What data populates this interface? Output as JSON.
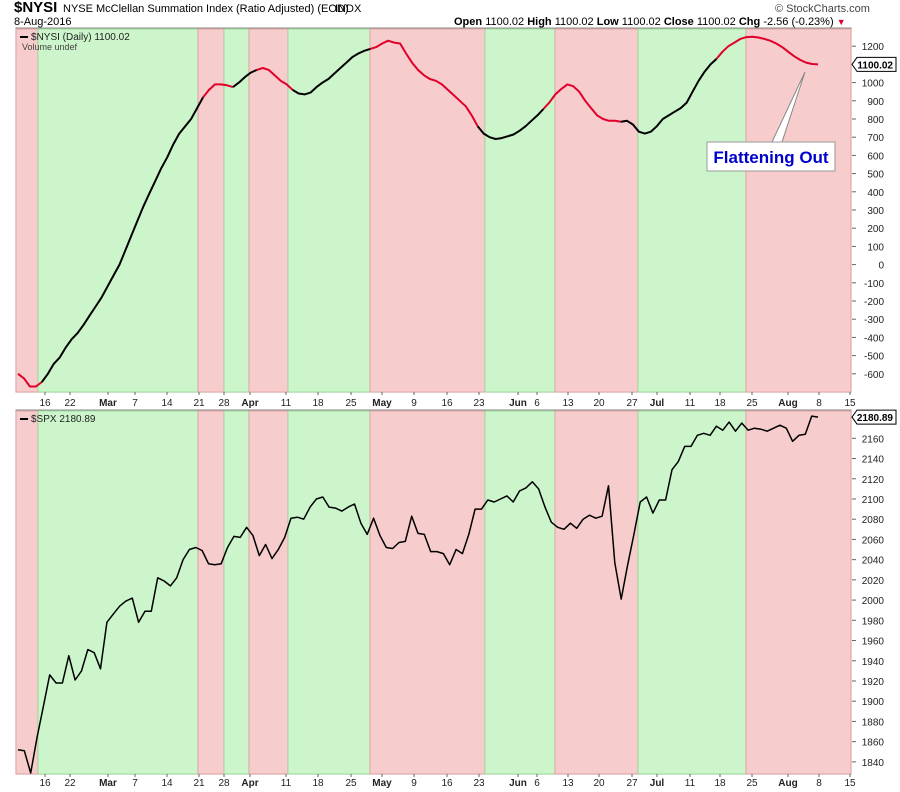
{
  "header": {
    "symbol": "$NYSI",
    "description": "NYSE McClellan Summation Index (Ratio Adjusted) (EOD)",
    "exchange": "INDX",
    "date": "8-Aug-2016",
    "open_label": "Open",
    "open": "1100.02",
    "high_label": "High",
    "high": "1100.02",
    "low_label": "Low",
    "low": "1100.02",
    "close_label": "Close",
    "close": "1100.02",
    "chg_label": "Chg",
    "chg": "-2.56 (-0.23%)",
    "copyright": "© StockCharts.com"
  },
  "colors": {
    "green_band": "#cdf5cc",
    "red_band": "#f6cccc",
    "green_edge": "#8fd88f",
    "red_edge": "#e09a9a",
    "line_up": "#000000",
    "line_down": "#e0002a",
    "callout_text": "#0000cc",
    "grid": "#b0b0b0"
  },
  "annotation": {
    "text": "Flattening Out"
  },
  "chart_data": [
    {
      "type": "line",
      "title": "$NYSI (Daily) 1100.02",
      "subtitle": "Volume undef",
      "last_value": "1100.02",
      "ylim": [
        -700,
        1300
      ],
      "yticks": [
        1200,
        1100,
        1000,
        900,
        800,
        700,
        600,
        500,
        400,
        300,
        200,
        100,
        0,
        -100,
        -200,
        -300,
        -400,
        -500,
        -600
      ],
      "x_tick_labels": [
        "16",
        "22",
        "Mar",
        "7",
        "14",
        "21",
        "28",
        "Apr",
        "11",
        "18",
        "25",
        "May",
        "9",
        "16",
        "23",
        "Jun",
        "6",
        "13",
        "20",
        "27",
        "Jul",
        "11",
        "18",
        "25",
        "Aug",
        "8",
        "15"
      ],
      "regimes": [
        {
          "type": "down",
          "from": 0,
          "to": 2
        },
        {
          "type": "up",
          "from": 2,
          "to": 15
        },
        {
          "type": "down",
          "from": 15,
          "to": 17
        },
        {
          "type": "up",
          "from": 17,
          "to": 19
        },
        {
          "type": "down",
          "from": 19,
          "to": 22
        },
        {
          "type": "up",
          "from": 22,
          "to": 28
        },
        {
          "type": "down",
          "from": 28,
          "to": 37
        },
        {
          "type": "up",
          "from": 37,
          "to": 42
        },
        {
          "type": "down",
          "from": 42,
          "to": 48
        },
        {
          "type": "up",
          "from": 48,
          "to": 56
        },
        {
          "type": "down",
          "from": 56,
          "to": 65
        }
      ],
      "series": [
        {
          "values": [
            -600,
            -625,
            -670,
            -670,
            -645,
            -600,
            -545,
            -510,
            -455,
            -410,
            -375,
            -330,
            -280,
            -230,
            -180,
            -120,
            -60,
            0,
            80,
            160,
            240,
            320,
            390,
            460,
            530,
            590,
            660,
            720,
            760,
            800,
            860,
            920,
            960,
            990,
            990,
            985,
            975,
            1000,
            1030,
            1055,
            1070,
            1080,
            1070,
            1040,
            1010,
            990,
            960,
            940,
            935,
            945,
            975,
            1000,
            1020,
            1050,
            1080,
            1110,
            1140,
            1160,
            1175,
            1185,
            1195,
            1215,
            1230,
            1220,
            1215,
            1160,
            1110,
            1070,
            1040,
            1020,
            1010,
            990,
            960,
            930,
            900,
            870,
            820,
            760,
            720,
            700,
            690,
            695,
            705,
            715,
            735,
            760,
            790,
            820,
            855,
            890,
            935,
            965,
            990,
            980,
            950,
            900,
            860,
            820,
            800,
            790,
            790,
            785,
            790,
            770,
            730,
            720,
            730,
            760,
            800,
            820,
            840,
            860,
            890,
            950,
            1010,
            1060,
            1100,
            1130,
            1170,
            1200,
            1220,
            1240,
            1250,
            1252,
            1248,
            1240,
            1230,
            1215,
            1195,
            1170,
            1145,
            1125,
            1110,
            1102,
            1100
          ]
        }
      ]
    },
    {
      "type": "line",
      "title": "$SPX 2180.89",
      "last_value": "2180.89",
      "ylim": [
        1828,
        2188
      ],
      "yticks": [
        2160,
        2140,
        2120,
        2100,
        2080,
        2060,
        2040,
        2020,
        2000,
        1980,
        1960,
        1940,
        1920,
        1900,
        1880,
        1860,
        1840
      ],
      "x_tick_labels": [
        "16",
        "22",
        "Mar",
        "7",
        "14",
        "21",
        "28",
        "Apr",
        "11",
        "18",
        "25",
        "May",
        "9",
        "16",
        "23",
        "Jun",
        "6",
        "13",
        "20",
        "27",
        "Jul",
        "11",
        "18",
        "25",
        "Aug",
        "8",
        "15"
      ],
      "series": [
        {
          "values": [
            1852,
            1851,
            1829,
            1864,
            1895,
            1926,
            1918,
            1918,
            1945,
            1921,
            1930,
            1951,
            1948,
            1932,
            1978,
            1986,
            1994,
            1999,
            2002,
            1978,
            1989,
            1989,
            2022,
            2019,
            2014,
            2022,
            2040,
            2050,
            2052,
            2049,
            2036,
            2035,
            2036,
            2052,
            2063,
            2062,
            2072,
            2064,
            2044,
            2055,
            2041,
            2050,
            2062,
            2081,
            2082,
            2080,
            2092,
            2100,
            2102,
            2092,
            2091,
            2088,
            2092,
            2095,
            2076,
            2065,
            2081,
            2064,
            2052,
            2051,
            2057,
            2058,
            2083,
            2066,
            2065,
            2048,
            2048,
            2046,
            2035,
            2050,
            2046,
            2065,
            2090,
            2090,
            2099,
            2097,
            2100,
            2103,
            2097,
            2108,
            2111,
            2117,
            2110,
            2092,
            2077,
            2072,
            2070,
            2076,
            2071,
            2080,
            2084,
            2081,
            2083,
            2113,
            2037,
            2001,
            2034,
            2065,
            2097,
            2102,
            2086,
            2099,
            2099,
            2129,
            2137,
            2152,
            2152,
            2163,
            2165,
            2163,
            2172,
            2168,
            2176,
            2167,
            2175,
            2168,
            2170,
            2169,
            2167,
            2170,
            2173,
            2170,
            2157,
            2163,
            2164,
            2182,
            2181
          ]
        }
      ]
    }
  ]
}
